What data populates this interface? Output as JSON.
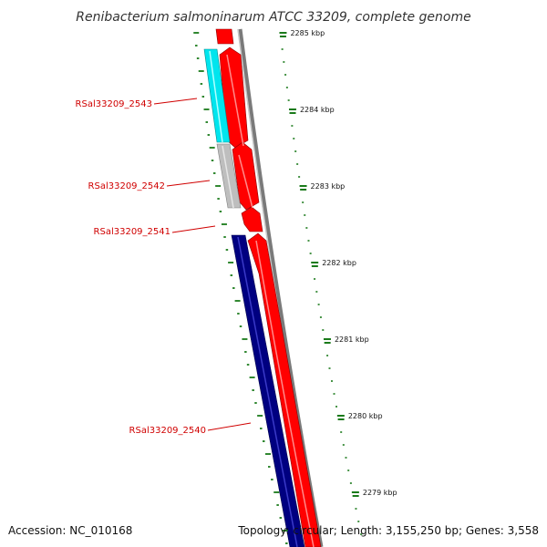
{
  "title": "Renibacterium salmoninarum ATCC 33209, complete genome",
  "footer": {
    "accession": "Accession: NC_010168",
    "topology": "Topology: circular; Length: 3,155,250 bp; Genes: 3,558"
  },
  "colors": {
    "forward_strand": "#ff0000",
    "reverse_cyan": "#00e5ee",
    "reverse_gray": "#bebebe",
    "reverse_navy": "#000080",
    "backbone": "#808080",
    "ticks": "#1a7a1a",
    "label": "#d00000"
  },
  "genes": [
    {
      "name": "RSal33209_2543",
      "strand": "reverse",
      "color": "#00e5ee"
    },
    {
      "name": "RSal33209_2542",
      "strand": "reverse",
      "color": "#bebebe"
    },
    {
      "name": "RSal33209_2541",
      "strand": "forward",
      "color": "#ff0000"
    },
    {
      "name": "RSal33209_2540",
      "strand": "reverse",
      "color": "#000080"
    }
  ],
  "scale_labels": [
    "2285 kbp",
    "2284 kbp",
    "2283 kbp",
    "2282 kbp",
    "2281 kbp",
    "2280 kbp",
    "2279 kbp"
  ]
}
